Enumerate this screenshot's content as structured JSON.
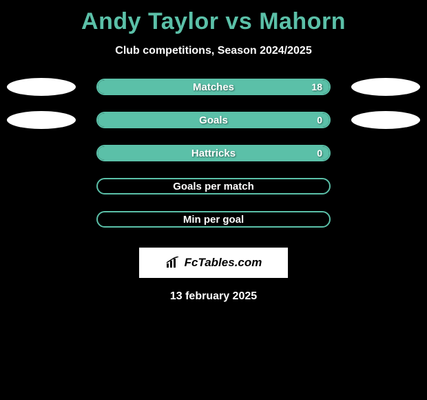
{
  "header": {
    "title": "Andy Taylor vs Mahorn",
    "subtitle": "Club competitions, Season 2024/2025"
  },
  "colors": {
    "accent": "#5bc0a8",
    "background": "#000000",
    "ellipse": "#ffffff",
    "text": "#ffffff"
  },
  "stats": [
    {
      "label": "Matches",
      "value": "18",
      "fill_pct": 100,
      "show_ellipses": true
    },
    {
      "label": "Goals",
      "value": "0",
      "fill_pct": 100,
      "show_ellipses": true
    },
    {
      "label": "Hattricks",
      "value": "0",
      "fill_pct": 100,
      "show_ellipses": false
    },
    {
      "label": "Goals per match",
      "value": "",
      "fill_pct": 0,
      "show_ellipses": false
    },
    {
      "label": "Min per goal",
      "value": "",
      "fill_pct": 0,
      "show_ellipses": false
    }
  ],
  "footer": {
    "logo_text": "FcTables.com",
    "date": "13 february 2025"
  }
}
